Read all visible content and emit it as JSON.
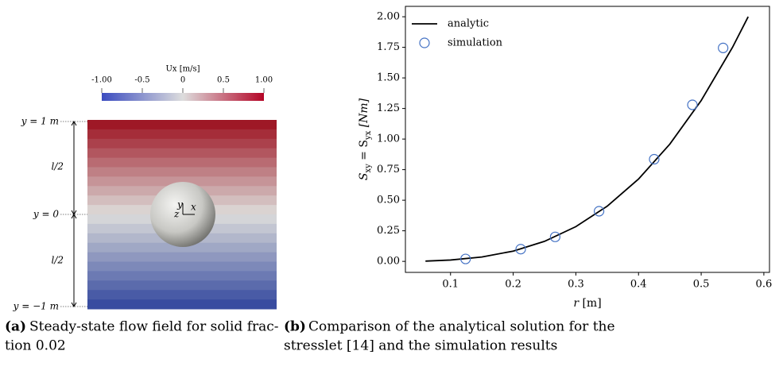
{
  "panel_a": {
    "colorbar": {
      "title": "Ux [m/s]",
      "ticks": [
        "-1.00",
        "-0.5",
        "0",
        "0.5",
        "1.00"
      ]
    },
    "left_labels": [
      "y = 1 m",
      "l/2",
      "y = 0",
      "l/2",
      "y = −1 m"
    ],
    "axes_labels": [
      "y",
      "z",
      "x"
    ],
    "caption": {
      "label": "(a)",
      "lines": [
        "Steady-state flow field for solid frac-",
        "tion 0.02"
      ]
    }
  },
  "chart_data": {
    "type": "line",
    "xlabel": [
      "r",
      " [m]"
    ],
    "ylabel": [
      "S",
      "xy",
      " = ",
      "S",
      "yx",
      " [Nm]"
    ],
    "xlim": [
      0.028,
      0.609
    ],
    "ylim": [
      -0.09,
      2.085
    ],
    "xticks": [
      0.1,
      0.2,
      0.3,
      0.4,
      0.5,
      0.6
    ],
    "yticks": [
      {
        "value": 0,
        "label": "0.00"
      },
      {
        "value": 0.25,
        "label": "0.25"
      },
      {
        "value": 0.5,
        "label": "0.50"
      },
      {
        "value": 0.75,
        "label": "0.75"
      },
      {
        "value": 1,
        "label": "1.00"
      },
      {
        "value": 1.25,
        "label": "1.25"
      },
      {
        "value": 1.5,
        "label": "1.50"
      },
      {
        "value": 1.75,
        "label": "1.75"
      },
      {
        "value": 2,
        "label": "2.00"
      }
    ],
    "legend": "upper left",
    "series": [
      {
        "name": "analytic",
        "color": "#000000",
        "style": "line",
        "x": [
          0.06,
          0.1,
          0.15,
          0.2,
          0.25,
          0.3,
          0.35,
          0.4,
          0.45,
          0.5,
          0.55,
          0.575
        ],
        "values": [
          0.002,
          0.011,
          0.036,
          0.084,
          0.164,
          0.284,
          0.451,
          0.673,
          0.959,
          1.315,
          1.75,
          2.0
        ]
      },
      {
        "name": "simulation",
        "color": "#4472c4",
        "style": "marker",
        "x": [
          0.124,
          0.212,
          0.267,
          0.337,
          0.425,
          0.486,
          0.535
        ],
        "values": [
          0.02,
          0.1,
          0.2,
          0.41,
          0.835,
          1.28,
          1.745
        ]
      }
    ],
    "caption": {
      "label": "(b)",
      "lines": [
        "Comparison of the analytical solution for the",
        "stresslet [14] and the simulation results"
      ]
    }
  }
}
